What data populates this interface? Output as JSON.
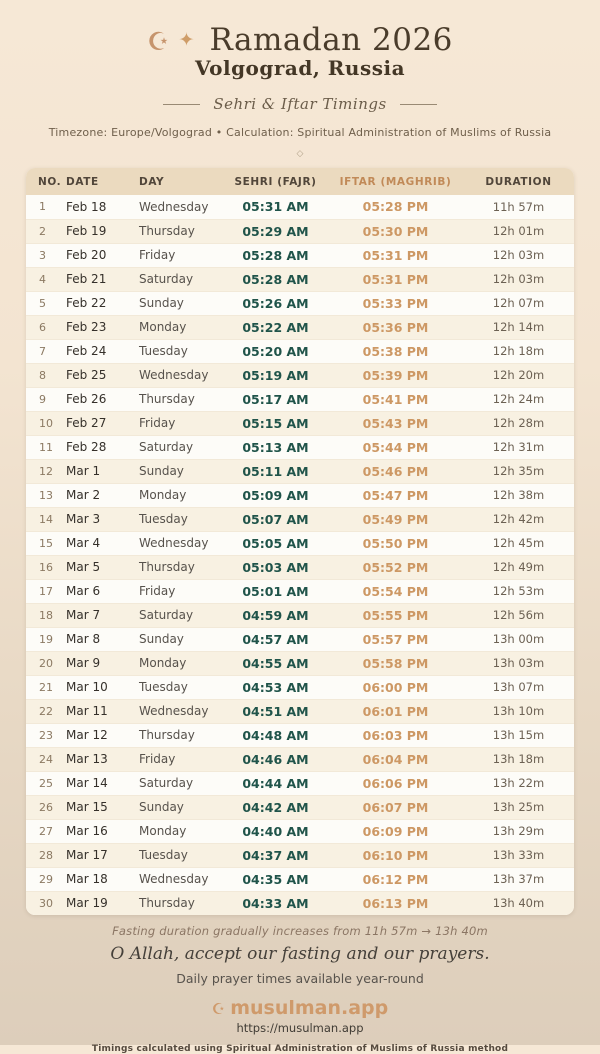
{
  "header": {
    "crescent_icon": "☪",
    "sparkle_icon": "✦",
    "title": "Ramadan 2026",
    "location": "Volgograd, Russia",
    "tagline": "Sehri & Iftar Timings",
    "meta": "Timezone: Europe/Volgograd • Calculation: Spiritual Administration of Muslims of Russia",
    "divider_glyph": "◇"
  },
  "table": {
    "columns": [
      "NO.",
      "DATE",
      "DAY",
      "SEHRI (FAJR)",
      "IFTAR (MAGHRIB)",
      "DURATION"
    ],
    "rows": [
      {
        "no": "1",
        "date": "Feb 18",
        "day": "Wednesday",
        "sehri": "05:31 AM",
        "iftar": "05:28 PM",
        "duration": "11h 57m"
      },
      {
        "no": "2",
        "date": "Feb 19",
        "day": "Thursday",
        "sehri": "05:29 AM",
        "iftar": "05:30 PM",
        "duration": "12h 01m"
      },
      {
        "no": "3",
        "date": "Feb 20",
        "day": "Friday",
        "sehri": "05:28 AM",
        "iftar": "05:31 PM",
        "duration": "12h 03m"
      },
      {
        "no": "4",
        "date": "Feb 21",
        "day": "Saturday",
        "sehri": "05:28 AM",
        "iftar": "05:31 PM",
        "duration": "12h 03m"
      },
      {
        "no": "5",
        "date": "Feb 22",
        "day": "Sunday",
        "sehri": "05:26 AM",
        "iftar": "05:33 PM",
        "duration": "12h 07m"
      },
      {
        "no": "6",
        "date": "Feb 23",
        "day": "Monday",
        "sehri": "05:22 AM",
        "iftar": "05:36 PM",
        "duration": "12h 14m"
      },
      {
        "no": "7",
        "date": "Feb 24",
        "day": "Tuesday",
        "sehri": "05:20 AM",
        "iftar": "05:38 PM",
        "duration": "12h 18m"
      },
      {
        "no": "8",
        "date": "Feb 25",
        "day": "Wednesday",
        "sehri": "05:19 AM",
        "iftar": "05:39 PM",
        "duration": "12h 20m"
      },
      {
        "no": "9",
        "date": "Feb 26",
        "day": "Thursday",
        "sehri": "05:17 AM",
        "iftar": "05:41 PM",
        "duration": "12h 24m"
      },
      {
        "no": "10",
        "date": "Feb 27",
        "day": "Friday",
        "sehri": "05:15 AM",
        "iftar": "05:43 PM",
        "duration": "12h 28m"
      },
      {
        "no": "11",
        "date": "Feb 28",
        "day": "Saturday",
        "sehri": "05:13 AM",
        "iftar": "05:44 PM",
        "duration": "12h 31m"
      },
      {
        "no": "12",
        "date": "Mar 1",
        "day": "Sunday",
        "sehri": "05:11 AM",
        "iftar": "05:46 PM",
        "duration": "12h 35m"
      },
      {
        "no": "13",
        "date": "Mar 2",
        "day": "Monday",
        "sehri": "05:09 AM",
        "iftar": "05:47 PM",
        "duration": "12h 38m"
      },
      {
        "no": "14",
        "date": "Mar 3",
        "day": "Tuesday",
        "sehri": "05:07 AM",
        "iftar": "05:49 PM",
        "duration": "12h 42m"
      },
      {
        "no": "15",
        "date": "Mar 4",
        "day": "Wednesday",
        "sehri": "05:05 AM",
        "iftar": "05:50 PM",
        "duration": "12h 45m"
      },
      {
        "no": "16",
        "date": "Mar 5",
        "day": "Thursday",
        "sehri": "05:03 AM",
        "iftar": "05:52 PM",
        "duration": "12h 49m"
      },
      {
        "no": "17",
        "date": "Mar 6",
        "day": "Friday",
        "sehri": "05:01 AM",
        "iftar": "05:54 PM",
        "duration": "12h 53m"
      },
      {
        "no": "18",
        "date": "Mar 7",
        "day": "Saturday",
        "sehri": "04:59 AM",
        "iftar": "05:55 PM",
        "duration": "12h 56m"
      },
      {
        "no": "19",
        "date": "Mar 8",
        "day": "Sunday",
        "sehri": "04:57 AM",
        "iftar": "05:57 PM",
        "duration": "13h 00m"
      },
      {
        "no": "20",
        "date": "Mar 9",
        "day": "Monday",
        "sehri": "04:55 AM",
        "iftar": "05:58 PM",
        "duration": "13h 03m"
      },
      {
        "no": "21",
        "date": "Mar 10",
        "day": "Tuesday",
        "sehri": "04:53 AM",
        "iftar": "06:00 PM",
        "duration": "13h 07m"
      },
      {
        "no": "22",
        "date": "Mar 11",
        "day": "Wednesday",
        "sehri": "04:51 AM",
        "iftar": "06:01 PM",
        "duration": "13h 10m"
      },
      {
        "no": "23",
        "date": "Mar 12",
        "day": "Thursday",
        "sehri": "04:48 AM",
        "iftar": "06:03 PM",
        "duration": "13h 15m"
      },
      {
        "no": "24",
        "date": "Mar 13",
        "day": "Friday",
        "sehri": "04:46 AM",
        "iftar": "06:04 PM",
        "duration": "13h 18m"
      },
      {
        "no": "25",
        "date": "Mar 14",
        "day": "Saturday",
        "sehri": "04:44 AM",
        "iftar": "06:06 PM",
        "duration": "13h 22m"
      },
      {
        "no": "26",
        "date": "Mar 15",
        "day": "Sunday",
        "sehri": "04:42 AM",
        "iftar": "06:07 PM",
        "duration": "13h 25m"
      },
      {
        "no": "27",
        "date": "Mar 16",
        "day": "Monday",
        "sehri": "04:40 AM",
        "iftar": "06:09 PM",
        "duration": "13h 29m"
      },
      {
        "no": "28",
        "date": "Mar 17",
        "day": "Tuesday",
        "sehri": "04:37 AM",
        "iftar": "06:10 PM",
        "duration": "13h 33m"
      },
      {
        "no": "29",
        "date": "Mar 18",
        "day": "Wednesday",
        "sehri": "04:35 AM",
        "iftar": "06:12 PM",
        "duration": "13h 37m"
      },
      {
        "no": "30",
        "date": "Mar 19",
        "day": "Thursday",
        "sehri": "04:33 AM",
        "iftar": "06:13 PM",
        "duration": "13h 40m"
      }
    ]
  },
  "footer": {
    "duration_note": "Fasting duration gradually increases from 11h 57m → 13h 40m",
    "dua": "O Allah, accept our fasting and our prayers.",
    "availability": "Daily prayer times available year-round",
    "brand_icon": "☪",
    "brand": "musulman.app",
    "url": "https://musulman.app",
    "method_note": "Timings calculated using Spiritual Administration of Muslims of Russia method"
  },
  "colors": {
    "sehri_time": "#20544a",
    "iftar_time": "#cd9864",
    "brand_accent": "#cf9a6b",
    "header_row_bg": "#ebdabf",
    "title_text": "#4a3c2b"
  }
}
